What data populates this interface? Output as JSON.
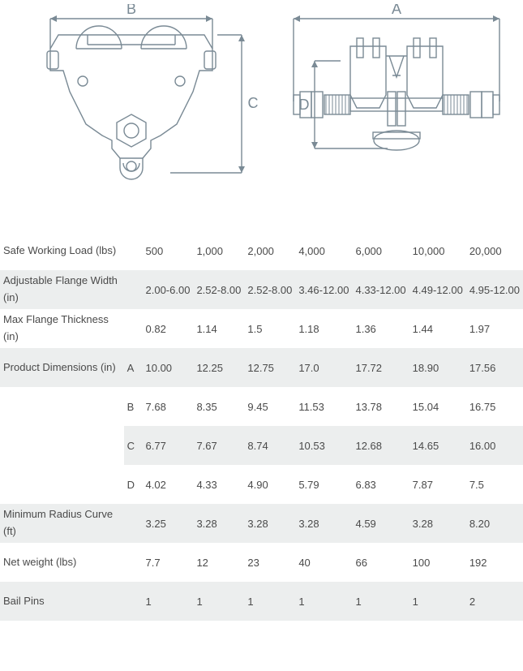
{
  "diagram": {
    "label_B": "B",
    "label_C": "C",
    "label_A": "A",
    "label_D": "D",
    "stroke": "#7a8a95",
    "stroke_width": 1.4
  },
  "table": {
    "columns": 7,
    "rows": {
      "swl": {
        "label": "Safe Working Load (lbs)",
        "sub": "",
        "values": [
          "500",
          "1,000",
          "2,000",
          "4,000",
          "6,000",
          "10,000",
          "20,000"
        ]
      },
      "flange_width": {
        "label": "Adjustable Flange Width (in)",
        "sub": "",
        "values": [
          "2.00-6.00",
          "2.52-8.00",
          "2.52-8.00",
          "3.46-12.00",
          "4.33-12.00",
          "4.49-12.00",
          "4.95-12.00"
        ]
      },
      "flange_thick": {
        "label": "Max Flange Thickness (in)",
        "sub": "",
        "values": [
          "0.82",
          "1.14",
          "1.5",
          "1.18",
          "1.36",
          "1.44",
          "1.97"
        ]
      },
      "dim_a": {
        "label": "Product Dimensions (in)",
        "sub": "A",
        "values": [
          "10.00",
          "12.25",
          "12.75",
          "17.0",
          "17.72",
          "18.90",
          "17.56"
        ]
      },
      "dim_b": {
        "label": "",
        "sub": "B",
        "values": [
          "7.68",
          "8.35",
          "9.45",
          "11.53",
          "13.78",
          "15.04",
          "16.75"
        ]
      },
      "dim_c": {
        "label": "",
        "sub": "C",
        "values": [
          "6.77",
          "7.67",
          "8.74",
          "10.53",
          "12.68",
          "14.65",
          "16.00"
        ]
      },
      "dim_d": {
        "label": "",
        "sub": "D",
        "values": [
          "4.02",
          "4.33",
          "4.90",
          "5.79",
          "6.83",
          "7.87",
          "7.5"
        ]
      },
      "radius": {
        "label": "Minimum Radius Curve (ft)",
        "sub": "",
        "values": [
          "3.25",
          "3.28",
          "3.28",
          "3.28",
          "4.59",
          "3.28",
          "8.20"
        ]
      },
      "weight": {
        "label": "Net weight (lbs)",
        "sub": "",
        "values": [
          "7.7",
          "12",
          "23",
          "40",
          "66",
          "100",
          "192"
        ]
      },
      "bail": {
        "label": "Bail Pins",
        "sub": "",
        "values": [
          "1",
          "1",
          "1",
          "1",
          "1",
          "1",
          "2"
        ]
      }
    },
    "shaded": [
      "flange_width",
      "dim_a",
      "dim_c",
      "radius",
      "bail"
    ],
    "colors": {
      "text": "#4a4a4a",
      "shade": "#eceeee",
      "background": "#ffffff"
    }
  }
}
